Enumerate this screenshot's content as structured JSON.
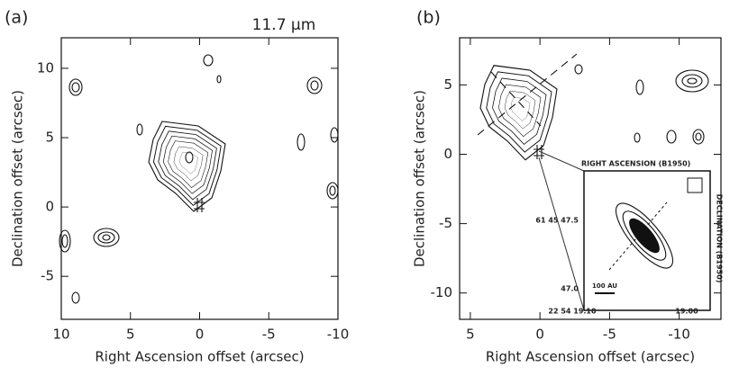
{
  "chart_data": [
    {
      "type": "contour",
      "panel_label": "(a)",
      "annotation": "11.7 μm",
      "x_label": "Right Ascension offset (arcsec)",
      "y_label": "Declination offset (arcsec)",
      "xlim": [
        10,
        -10
      ],
      "ylim": [
        -8.1,
        12.2
      ],
      "xticks": [
        10,
        5,
        0,
        -5,
        -10
      ],
      "yticks": [
        -5,
        0,
        5,
        10
      ]
    },
    {
      "type": "contour",
      "panel_label": "(b)",
      "x_label": "Right Ascension offset (arcsec)",
      "y_label": "Declination offset (arcsec)",
      "xlim": [
        5.77,
        -13.0
      ],
      "ylim": [
        -11.9,
        8.4
      ],
      "xticks": [
        5,
        0,
        -5,
        -10
      ],
      "yticks": [
        5,
        0,
        -5,
        -10
      ],
      "inset": {
        "x_title": "RIGHT ASCENSION (B1950)",
        "y_title": "DECLINATION (B1950)",
        "y_label_top": "61 45 47.5",
        "y_label_bottom": "47.0",
        "x_label_left": "22 54 19.10",
        "x_label_right": "19.00",
        "scale_bar": "100 AU"
      }
    }
  ]
}
